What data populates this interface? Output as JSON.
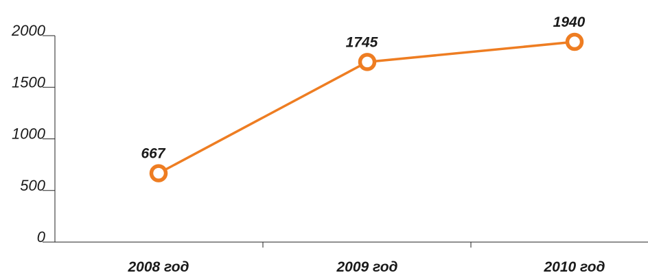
{
  "chart_data": {
    "type": "line",
    "categories": [
      "2008 год",
      "2009 год",
      "2010 год"
    ],
    "series": [
      {
        "values": [
          667,
          1745,
          1940
        ]
      }
    ],
    "data_labels": [
      "667",
      "1745",
      "1940"
    ],
    "y_ticks": [
      "0",
      "500",
      "1000",
      "1500",
      "2000"
    ],
    "ylim": [
      0,
      2000
    ],
    "title": "",
    "xlabel": "",
    "ylabel": "",
    "grid": false,
    "colors": {
      "line": "#ee7d22",
      "marker_fill": "#ffffff",
      "axis": "#222222",
      "text": "#1a1a1a"
    }
  }
}
